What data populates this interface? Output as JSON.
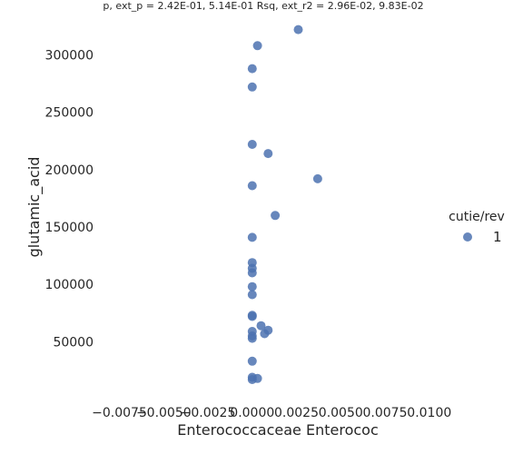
{
  "chart_data": {
    "type": "scatter",
    "title": "p, ext_p = 2.42E-01, 5.14E-01 Rsq, ext_r2 = 2.96E-02, 9.83E-02",
    "xlabel": "Enterococcaceae Enterococ",
    "ylabel": "glutamic_acid",
    "xlim": [
      -0.0085,
      0.0115
    ],
    "ylim": [
      2000,
      332000
    ],
    "x_ticks": [
      -0.0075,
      -0.005,
      -0.0025,
      0.0,
      0.0025,
      0.005,
      0.0075,
      0.01
    ],
    "x_tick_labels": [
      "−0.0075",
      "−0.0050",
      "−0.0025",
      "0.0000",
      "0.0025",
      "0.0050",
      "0.0075",
      "0.0100"
    ],
    "y_ticks": [
      50000,
      100000,
      150000,
      200000,
      250000,
      300000
    ],
    "y_tick_labels": [
      "50000",
      "100000",
      "150000",
      "200000",
      "250000",
      "300000"
    ],
    "grid": false,
    "legend": {
      "title": "cutie/rev",
      "placement": "right"
    },
    "series": [
      {
        "name": "1",
        "color": "#4c72b0",
        "points": [
          {
            "x": 0.0026,
            "y": 322000
          },
          {
            "x": 0.0003,
            "y": 308000
          },
          {
            "x": 0.0,
            "y": 288000
          },
          {
            "x": 0.0,
            "y": 272000
          },
          {
            "x": 0.0,
            "y": 222000
          },
          {
            "x": 0.0009,
            "y": 214000
          },
          {
            "x": 0.0037,
            "y": 192000
          },
          {
            "x": 0.0,
            "y": 186000
          },
          {
            "x": 0.0013,
            "y": 160000
          },
          {
            "x": 0.0,
            "y": 141000
          },
          {
            "x": 0.0,
            "y": 119000
          },
          {
            "x": 0.0,
            "y": 114000
          },
          {
            "x": 0.0,
            "y": 110000
          },
          {
            "x": 0.0,
            "y": 98000
          },
          {
            "x": 0.0,
            "y": 91000
          },
          {
            "x": 0.0,
            "y": 73000
          },
          {
            "x": 0.0,
            "y": 72000
          },
          {
            "x": 0.0005,
            "y": 64000
          },
          {
            "x": 0.0009,
            "y": 60000
          },
          {
            "x": 0.0,
            "y": 59000
          },
          {
            "x": 0.0007,
            "y": 57000
          },
          {
            "x": 0.0,
            "y": 55000
          },
          {
            "x": 0.0,
            "y": 53000
          },
          {
            "x": 0.0,
            "y": 33000
          },
          {
            "x": 0.0,
            "y": 19000
          },
          {
            "x": 0.0003,
            "y": 18000
          },
          {
            "x": 0.0,
            "y": 17000
          }
        ]
      }
    ]
  }
}
